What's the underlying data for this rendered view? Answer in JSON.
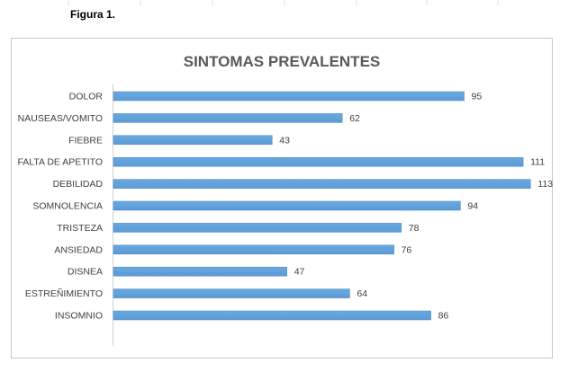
{
  "figure_label": "Figura 1.",
  "chart_data": {
    "type": "bar",
    "orientation": "horizontal",
    "title": "SINTOMAS PREVALENTES",
    "categories": [
      "DOLOR",
      "NAUSEAS/VOMITO",
      "FIEBRE",
      "FALTA DE APETITO",
      "DEBILIDAD",
      "SOMNOLENCIA",
      "TRISTEZA",
      "ANSIEDAD",
      "DISNEA",
      "ESTREÑIMIENTO",
      "INSOMNIO"
    ],
    "values": [
      95,
      62,
      43,
      111,
      113,
      94,
      78,
      76,
      47,
      64,
      86
    ],
    "xlabel": "",
    "ylabel": "",
    "xlim": [
      0,
      120
    ],
    "grid": false,
    "legend": "none",
    "data_labels": true,
    "bar_color": "#5b9bd5"
  }
}
